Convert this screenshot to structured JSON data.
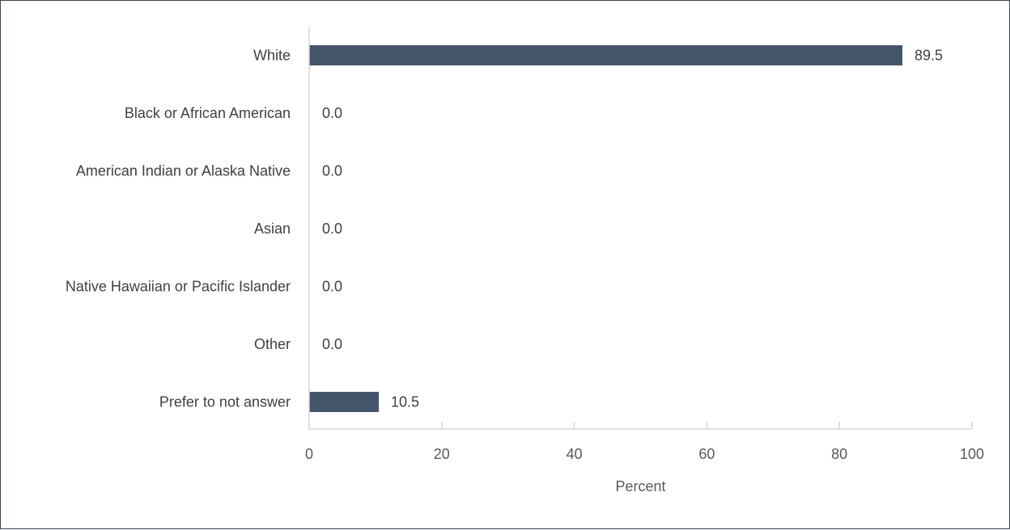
{
  "chart_data": {
    "type": "bar",
    "orientation": "horizontal",
    "categories": [
      "White",
      "Black or African American",
      "American Indian or Alaska Native",
      "Asian",
      "Native Hawaiian or Pacific Islander",
      "Other",
      "Prefer to not answer"
    ],
    "values": [
      89.5,
      0.0,
      0.0,
      0.0,
      0.0,
      0.0,
      10.5
    ],
    "data_labels": [
      "89.5",
      "0.0",
      "0.0",
      "0.0",
      "0.0",
      "0.0",
      "10.5"
    ],
    "xlabel": "Percent",
    "ylabel": "",
    "xlim": [
      0,
      100
    ],
    "xticks": [
      0,
      20,
      40,
      60,
      80,
      100
    ],
    "grid": false,
    "bar_color": "#44546a",
    "axis_color": "#d9d9d9"
  }
}
